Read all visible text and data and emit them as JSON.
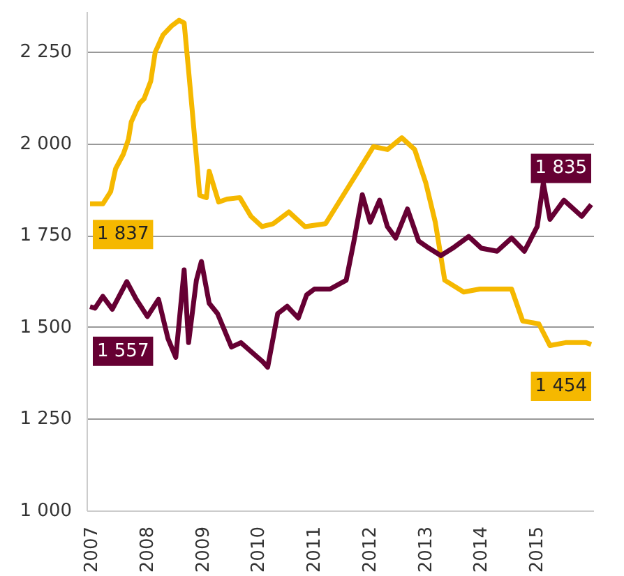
{
  "chart_data": {
    "type": "line",
    "xlim": [
      2006.95,
      2016.05
    ],
    "ylim": [
      1000,
      2360
    ],
    "data_labels": false,
    "xticks": [
      2007,
      2008,
      2009,
      2010,
      2011,
      2012,
      2013,
      2014,
      2015
    ],
    "yticks": [
      {
        "value": 1000,
        "label": "1 000"
      },
      {
        "value": 1250,
        "label": "1 250"
      },
      {
        "value": 1500,
        "label": "1 500"
      },
      {
        "value": 1750,
        "label": "1 750"
      },
      {
        "value": 2000,
        "label": "2 000"
      },
      {
        "value": 2250,
        "label": "2 250"
      }
    ],
    "grid": "y",
    "marker": "none",
    "line_style": "solid",
    "series": [
      {
        "color": "#f5b800",
        "x": [
          2007.0,
          2007.23,
          2007.37,
          2007.46,
          2007.6,
          2007.69,
          2007.74,
          2007.89,
          2007.97,
          2008.09,
          2008.17,
          2008.31,
          2008.46,
          2008.6,
          2008.69,
          2008.77,
          2008.83,
          2008.97,
          2009.09,
          2009.14,
          2009.31,
          2009.46,
          2009.69,
          2009.89,
          2010.09,
          2010.29,
          2010.57,
          2010.86,
          2011.23,
          2011.8,
          2012.09,
          2012.34,
          2012.6,
          2012.83,
          2013.03,
          2013.2,
          2013.37,
          2013.71,
          2014.0,
          2014.57,
          2014.77,
          2015.06,
          2015.26,
          2015.54,
          2015.91,
          2016.0
        ],
        "value_labels": [
          "1 837",
          null,
          null,
          null,
          null,
          null,
          null,
          null,
          null,
          null,
          null,
          null,
          null,
          null,
          null,
          null,
          null,
          null,
          null,
          null,
          null,
          null,
          null,
          null,
          null,
          null,
          null,
          null,
          null,
          null,
          null,
          null,
          null,
          null,
          null,
          null,
          null,
          null,
          null,
          null,
          null,
          null,
          null,
          null,
          null,
          "1 454"
        ],
        "values": [
          1837,
          1837,
          1870,
          1933,
          1973,
          2013,
          2060,
          2111,
          2123,
          2171,
          2250,
          2297,
          2321,
          2337,
          2330,
          2200,
          2100,
          1860,
          1854,
          1926,
          1842,
          1850,
          1854,
          1803,
          1775,
          1783,
          1815,
          1775,
          1783,
          1922,
          1993,
          1985,
          2017,
          1985,
          1894,
          1787,
          1629,
          1597,
          1605,
          1605,
          1518,
          1510,
          1451,
          1459,
          1459,
          1454
        ]
      },
      {
        "color": "#660033",
        "x": [
          2007.0,
          2007.09,
          2007.23,
          2007.4,
          2007.66,
          2007.83,
          2008.03,
          2008.23,
          2008.4,
          2008.54,
          2008.69,
          2008.77,
          2008.91,
          2009.0,
          2009.14,
          2009.29,
          2009.54,
          2009.71,
          2010.1,
          2010.19,
          2010.37,
          2010.54,
          2010.74,
          2010.89,
          2011.03,
          2011.31,
          2011.6,
          2011.74,
          2011.89,
          2012.03,
          2012.2,
          2012.34,
          2012.49,
          2012.7,
          2012.9,
          2013.09,
          2013.3,
          2013.51,
          2013.8,
          2014.03,
          2014.31,
          2014.57,
          2014.8,
          2015.03,
          2015.14,
          2015.26,
          2015.51,
          2015.83,
          2016.0
        ],
        "value_labels": [
          "1 557",
          null,
          null,
          null,
          null,
          null,
          null,
          null,
          null,
          null,
          null,
          null,
          null,
          null,
          null,
          null,
          null,
          null,
          null,
          null,
          null,
          null,
          null,
          null,
          null,
          null,
          null,
          null,
          null,
          null,
          null,
          null,
          null,
          null,
          null,
          null,
          null,
          null,
          null,
          null,
          null,
          null,
          null,
          null,
          null,
          null,
          null,
          null,
          "1 835"
        ],
        "values": [
          1557,
          1553,
          1585,
          1550,
          1625,
          1577,
          1530,
          1577,
          1470,
          1419,
          1657,
          1459,
          1629,
          1680,
          1566,
          1538,
          1447,
          1459,
          1407,
          1392,
          1538,
          1558,
          1526,
          1589,
          1605,
          1605,
          1629,
          1736,
          1862,
          1787,
          1847,
          1775,
          1744,
          1823,
          1736,
          1716,
          1696,
          1716,
          1748,
          1716,
          1708,
          1744,
          1708,
          1775,
          1894,
          1795,
          1847,
          1803,
          1835
        ]
      }
    ]
  }
}
